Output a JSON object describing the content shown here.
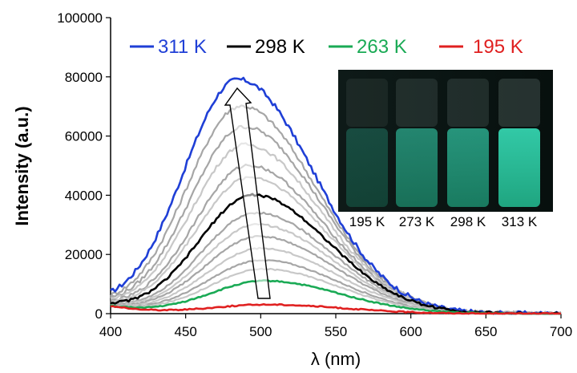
{
  "chart_data": {
    "type": "line",
    "xlabel": "λ (nm)",
    "ylabel": "Intensity  (a.u.)",
    "xlim": [
      400,
      700
    ],
    "ylim": [
      0,
      100000
    ],
    "xticks": [
      "400",
      "450",
      "500",
      "550",
      "600",
      "650",
      "700"
    ],
    "yticks": [
      "0",
      "20000",
      "40000",
      "60000",
      "80000",
      "100000"
    ],
    "legend_position": "top",
    "series": [
      {
        "name": "311 K",
        "color": "#1f3fd6",
        "peak_x": 485,
        "peak_y": 79000,
        "emphasis": true
      },
      {
        "peak_x": 487,
        "peak_y": 70000,
        "color": "#a6a6a6"
      },
      {
        "peak_x": 489,
        "peak_y": 63000,
        "color": "#a6a6a6"
      },
      {
        "peak_x": 490,
        "peak_y": 57000,
        "color": "#c8c8c8"
      },
      {
        "peak_x": 492,
        "peak_y": 50000,
        "color": "#a6a6a6"
      },
      {
        "peak_x": 493,
        "peak_y": 46000,
        "color": "#c8c8c8"
      },
      {
        "name": "298 K",
        "color": "#000000",
        "peak_x": 495,
        "peak_y": 40000,
        "emphasis": true
      },
      {
        "peak_x": 497,
        "peak_y": 34000,
        "color": "#a6a6a6"
      },
      {
        "peak_x": 498,
        "peak_y": 30000,
        "color": "#c8c8c8"
      },
      {
        "peak_x": 499,
        "peak_y": 26000,
        "color": "#a6a6a6"
      },
      {
        "peak_x": 500,
        "peak_y": 22000,
        "color": "#c8c8c8"
      },
      {
        "peak_x": 501,
        "peak_y": 18000,
        "color": "#a6a6a6"
      },
      {
        "peak_x": 502,
        "peak_y": 15000,
        "color": "#c8c8c8"
      },
      {
        "name": "263 K",
        "color": "#1aaa55",
        "peak_x": 503,
        "peak_y": 11000,
        "emphasis": true
      },
      {
        "name": "195 K",
        "color": "#e02020",
        "peak_x": 505,
        "peak_y": 3000,
        "emphasis": true
      }
    ],
    "legend": [
      {
        "label": "311 K",
        "color": "#1f3fd6"
      },
      {
        "label": "298 K",
        "color": "#000000"
      },
      {
        "label": "263 K",
        "color": "#1aaa55"
      },
      {
        "label": "195 K",
        "color": "#e02020"
      }
    ],
    "arrow_direction": "increasing temperature"
  },
  "inset_photo": {
    "labels": [
      "195 K",
      "273 K",
      "298 K",
      "313 K"
    ],
    "glow_levels": [
      0.15,
      0.55,
      0.65,
      1.0
    ]
  }
}
